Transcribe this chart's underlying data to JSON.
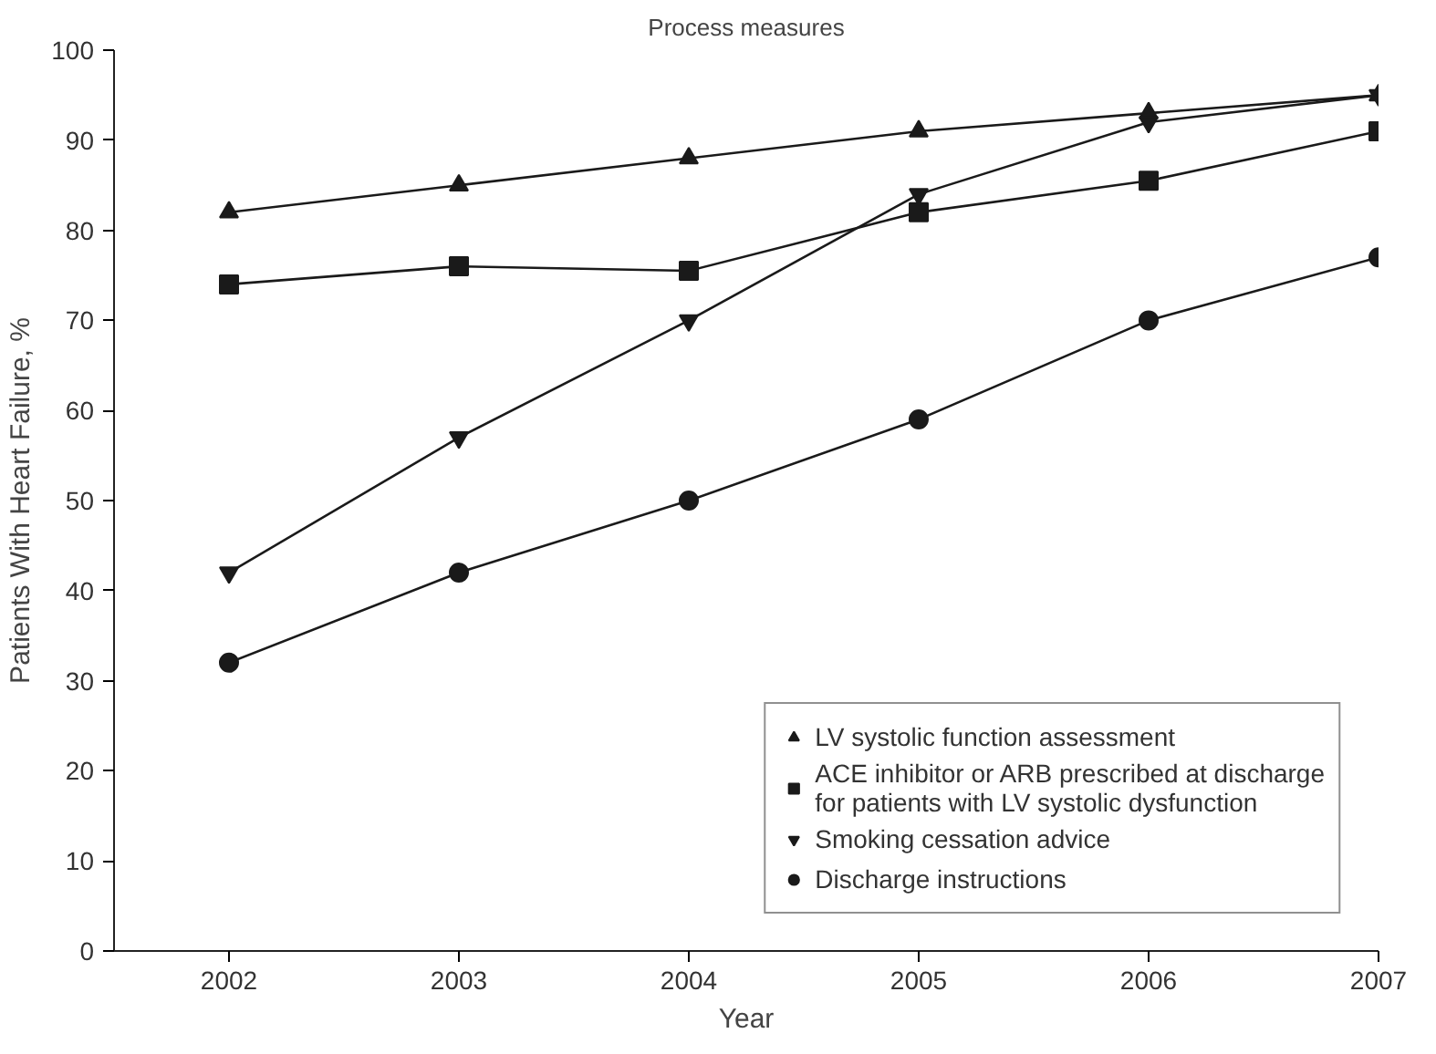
{
  "chart_data": {
    "type": "line",
    "title": "Process measures",
    "xlabel": "Year",
    "ylabel": "Patients With Heart Failure, %",
    "x": [
      2002,
      2003,
      2004,
      2005,
      2006,
      2007
    ],
    "xlim": [
      2001.5,
      2007
    ],
    "xticks": [
      2002,
      2003,
      2004,
      2005,
      2006,
      2007
    ],
    "ylim": [
      0,
      100
    ],
    "yticks": [
      0,
      10,
      20,
      30,
      40,
      50,
      60,
      70,
      80,
      90,
      100
    ],
    "grid": false,
    "legend": "bottom right",
    "line_style": "solid",
    "series": [
      {
        "name": "LV systolic function assessment",
        "color": "#1a1a1a",
        "marker": "triangle",
        "values": [
          82,
          85,
          88,
          91,
          93,
          95
        ]
      },
      {
        "name": "ACE inhibitor or ARB prescribed at discharge for patients with LV systolic dysfunction",
        "color": "#1a1a1a",
        "marker": "square",
        "values": [
          74,
          76,
          75.5,
          82,
          85.5,
          91
        ]
      },
      {
        "name": "Smoking cessation advice",
        "color": "#1a1a1a",
        "marker": "triangle_down",
        "values": [
          42,
          57,
          70,
          84,
          92,
          95
        ]
      },
      {
        "name": "Discharge instructions",
        "color": "#1a1a1a",
        "marker": "circle",
        "values": [
          32,
          42,
          50,
          59,
          70,
          77
        ]
      }
    ]
  }
}
